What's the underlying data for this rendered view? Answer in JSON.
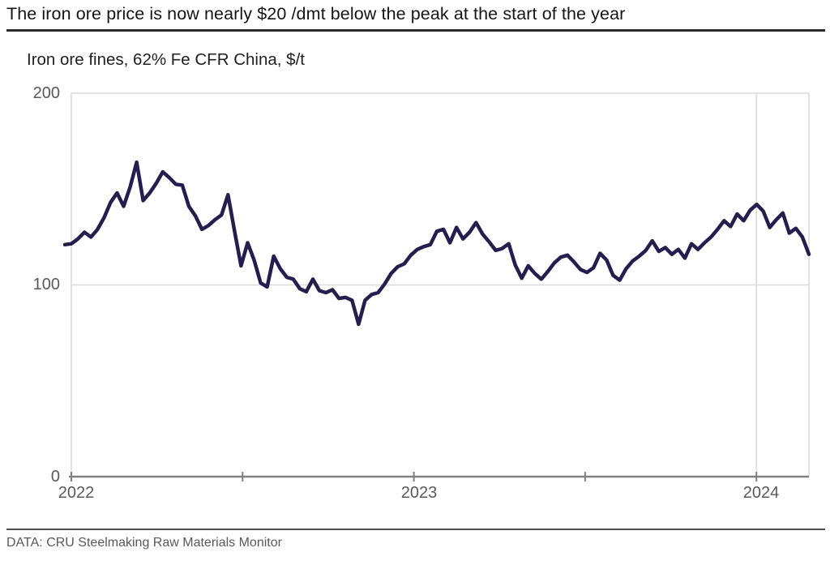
{
  "header": {
    "title": "The iron ore price is now nearly $20 /dmt below the peak at the start of the year"
  },
  "footer": {
    "source": "DATA: CRU Steelmaking Raw Materials Monitor"
  },
  "chart_data": {
    "type": "line",
    "title": "Iron ore fines, 62% Fe CFR China, $/t",
    "series_name": "Iron ore fines, 62% Fe CFR China price",
    "unit": "$/t",
    "cadence": "weekly",
    "x_start": "late Dec 2021",
    "x_end": "late Feb 2024",
    "ylim": [
      0,
      200
    ],
    "yticks": [
      0,
      100,
      200
    ],
    "ytick_labels": [
      "0",
      "100",
      "200"
    ],
    "xticks_years": [
      2022,
      2023,
      2024
    ],
    "xtick_labels": [
      "2022",
      "2023",
      "2024"
    ],
    "minor_xticks_per_year": 4,
    "grid": "horizontal gridlines at 100 and 200; vertical gridlines at each year start; light gray",
    "legend": "none",
    "line_color": "#241e4e",
    "grid_color": "#d9d9d9",
    "axis_color": "#808080",
    "tick_label_color": "#595959",
    "values": [
      121,
      121.5,
      124,
      127.5,
      125,
      129,
      135,
      143,
      148,
      141,
      151,
      164,
      144,
      148,
      153,
      159,
      156,
      152.5,
      152,
      141,
      136,
      129,
      131,
      134,
      136.5,
      147,
      128,
      110,
      122,
      113,
      101,
      99,
      115,
      108.5,
      104,
      103,
      98,
      96.5,
      103,
      97,
      96,
      97.5,
      93,
      93.5,
      92,
      79.5,
      92,
      95,
      96,
      100.5,
      106,
      109.5,
      111,
      115.5,
      118.5,
      120,
      121,
      128,
      129,
      122,
      130,
      124,
      127.5,
      132.5,
      126.5,
      122.5,
      118,
      119,
      121.5,
      110.5,
      103.5,
      110,
      106,
      103,
      107,
      111.5,
      114.5,
      115.5,
      112,
      108,
      106.5,
      109,
      116.5,
      113,
      105,
      102.5,
      108.5,
      112.5,
      115,
      118,
      123,
      117.5,
      119.5,
      116,
      118.5,
      114,
      121.5,
      118.5,
      122,
      125,
      129,
      133.5,
      130.5,
      137,
      133.5,
      139,
      142,
      138.5,
      130,
      134,
      137.5,
      127,
      129.5,
      125,
      116
    ]
  }
}
